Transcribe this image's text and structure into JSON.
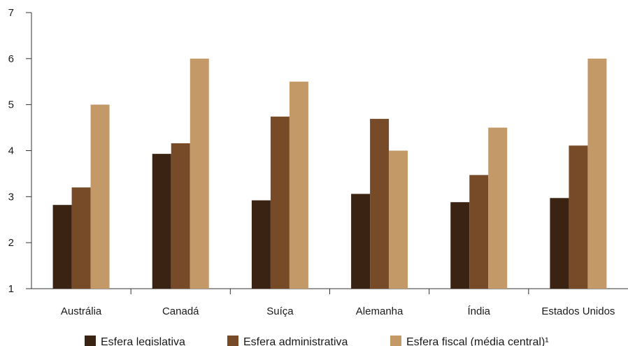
{
  "chart_data": {
    "type": "bar",
    "categories": [
      "Austrália",
      "Canadá",
      "Suíça",
      "Alemanha",
      "Índia",
      "Estados Unidos"
    ],
    "series": [
      {
        "name": "Esfera legislativa",
        "color": "#3b2314",
        "values": [
          2.82,
          3.93,
          2.92,
          3.06,
          2.88,
          2.97
        ]
      },
      {
        "name": "Esfera administrativa",
        "color": "#774a28",
        "values": [
          3.2,
          4.16,
          4.74,
          4.69,
          3.47,
          4.11
        ]
      },
      {
        "name": "Esfera fiscal (média central)¹",
        "color": "#c39968",
        "values": [
          5.0,
          6.0,
          5.5,
          4.0,
          4.5,
          6.0
        ]
      }
    ],
    "title": "",
    "xlabel": "",
    "ylabel": "",
    "ylim": [
      1,
      7
    ],
    "yticks": [
      1,
      2,
      3,
      4,
      5,
      6,
      7
    ],
    "grid": false,
    "legend_position": "bottom"
  }
}
